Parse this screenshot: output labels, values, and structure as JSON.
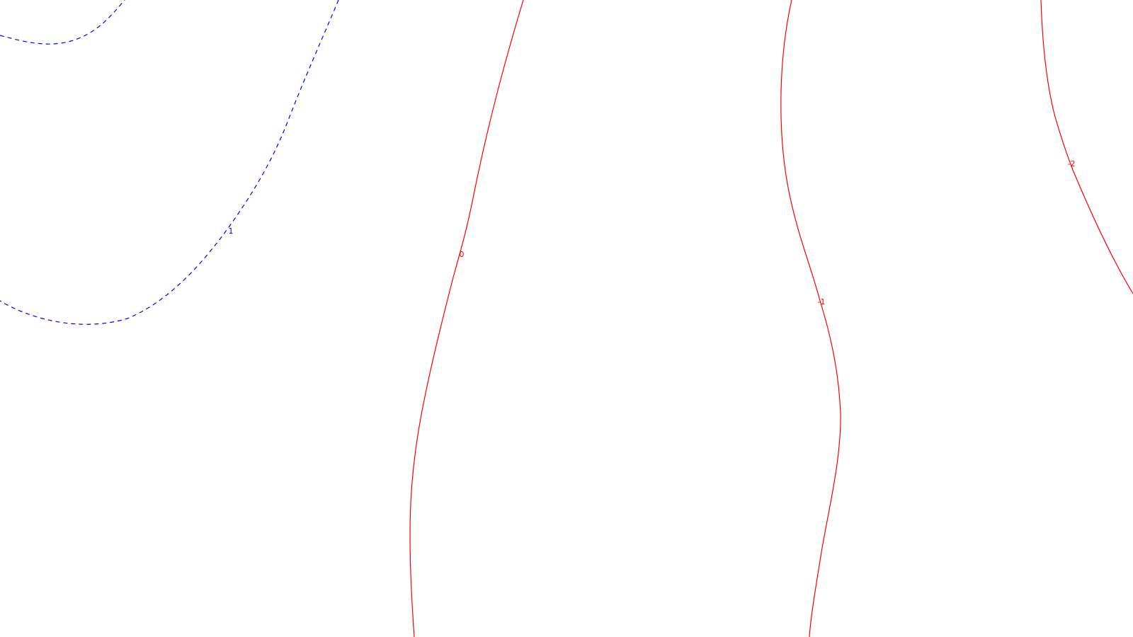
{
  "colors": {
    "positive": "#0000ff",
    "negative": "#ff0000",
    "background": "#ffffff"
  },
  "contours": [
    {
      "id": "outer-positive",
      "sign": "positive",
      "label": ""
    },
    {
      "id": "inner-positive",
      "sign": "positive",
      "label": "1"
    },
    {
      "id": "zero",
      "sign": "negative",
      "label": "0"
    },
    {
      "id": "minus-one",
      "sign": "negative",
      "label": "-1"
    },
    {
      "id": "minus-two",
      "sign": "negative",
      "label": "-2"
    }
  ]
}
